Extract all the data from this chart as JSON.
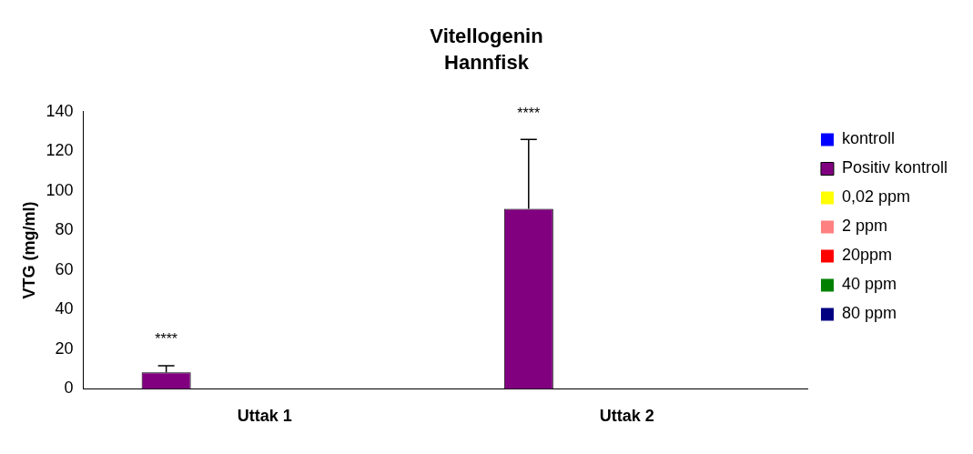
{
  "chart_data": {
    "type": "bar",
    "title": "Vitellogenin",
    "subtitle": "Hannfisk",
    "ylabel": "VTG (mg/ml)",
    "categories": [
      "Uttak 1",
      "Uttak 2"
    ],
    "series": [
      {
        "name": "kontroll",
        "color": "#0000ff",
        "values": [
          0,
          0
        ]
      },
      {
        "name": "Positiv kontroll",
        "color": "#800080",
        "values": [
          8.3,
          91
        ],
        "errors": [
          [
            8.3,
            11.7
          ],
          [
            91,
            126
          ]
        ]
      },
      {
        "name": "0,02 ppm",
        "color": "#ffff00",
        "values": [
          0,
          0
        ]
      },
      {
        "name": "2 ppm",
        "color": "#ff8080",
        "values": [
          0,
          0
        ]
      },
      {
        "name": "20ppm",
        "color": "#ff0000",
        "values": [
          0,
          0
        ]
      },
      {
        "name": "40 ppm",
        "color": "#008000",
        "values": [
          0,
          0
        ]
      },
      {
        "name": "80 ppm",
        "color": "#000080",
        "values": [
          0,
          0
        ]
      }
    ],
    "annotations": [
      "****",
      "****"
    ],
    "ylim": [
      0,
      140
    ],
    "yticks": [
      0,
      20,
      40,
      60,
      80,
      100,
      120,
      140
    ],
    "grid": false,
    "legend": "right"
  }
}
